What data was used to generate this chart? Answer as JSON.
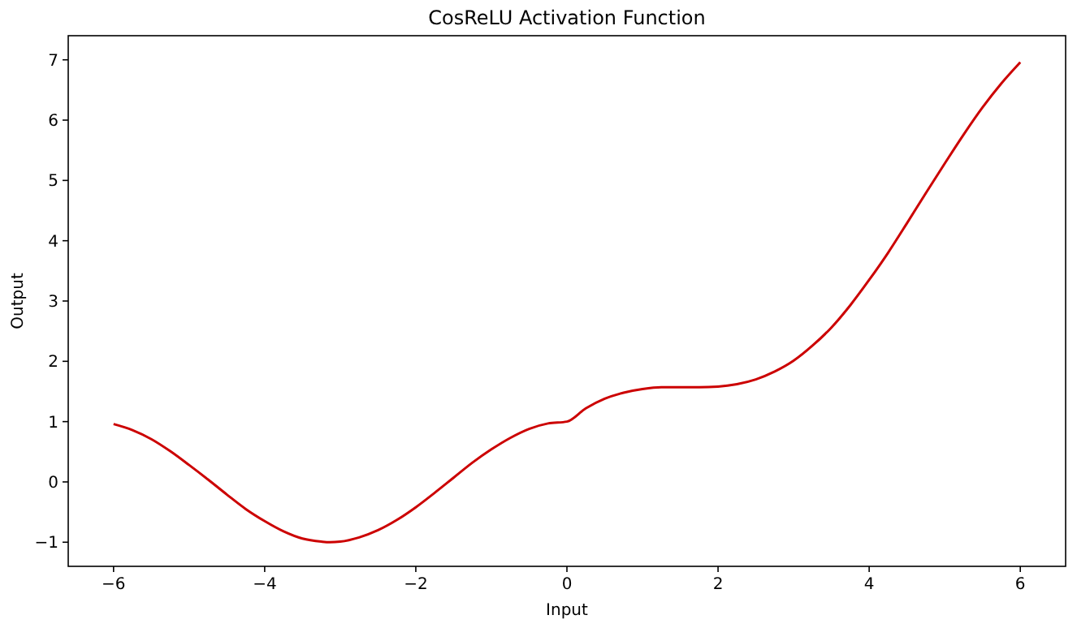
{
  "chart_data": {
    "type": "line",
    "title": "CosReLU Activation Function",
    "xlabel": "Input",
    "ylabel": "Output",
    "x": [
      -6,
      -5.75,
      -5.5,
      -5.25,
      -5,
      -4.75,
      -4.5,
      -4.25,
      -4,
      -3.75,
      -3.5,
      -3.25,
      -3.14,
      -3,
      -2.75,
      -2.5,
      -2.25,
      -2,
      -1.75,
      -1.5,
      -1.25,
      -1,
      -0.75,
      -0.5,
      -0.25,
      0,
      0.25,
      0.5,
      0.75,
      1,
      1.25,
      1.5,
      1.75,
      2,
      2.25,
      2.5,
      2.75,
      3,
      3.25,
      3.5,
      3.75,
      4,
      4.25,
      4.5,
      4.75,
      5,
      5.25,
      5.5,
      5.75,
      6
    ],
    "series": [
      {
        "color": "#cc0000",
        "values": [
          0.96,
          0.86,
          0.71,
          0.51,
          0.28,
          0.04,
          -0.21,
          -0.45,
          -0.65,
          -0.82,
          -0.94,
          -0.99,
          -1,
          -0.99,
          -0.92,
          -0.8,
          -0.63,
          -0.42,
          -0.18,
          0.07,
          0.32,
          0.54,
          0.73,
          0.88,
          0.97,
          1,
          1.22,
          1.38,
          1.48,
          1.54,
          1.57,
          1.57,
          1.57,
          1.58,
          1.62,
          1.7,
          1.83,
          2.01,
          2.26,
          2.56,
          2.93,
          3.35,
          3.8,
          4.29,
          4.79,
          5.28,
          5.76,
          6.21,
          6.61,
          6.96
        ]
      }
    ],
    "xlim": [
      -6.6,
      6.6
    ],
    "ylim": [
      -1.4,
      7.4
    ],
    "xticks": [
      -6,
      -4,
      -2,
      0,
      2,
      4,
      6
    ],
    "yticks": [
      -1,
      0,
      1,
      2,
      3,
      4,
      5,
      6,
      7
    ],
    "grid": false,
    "marker": "none",
    "line_style": "solid"
  }
}
